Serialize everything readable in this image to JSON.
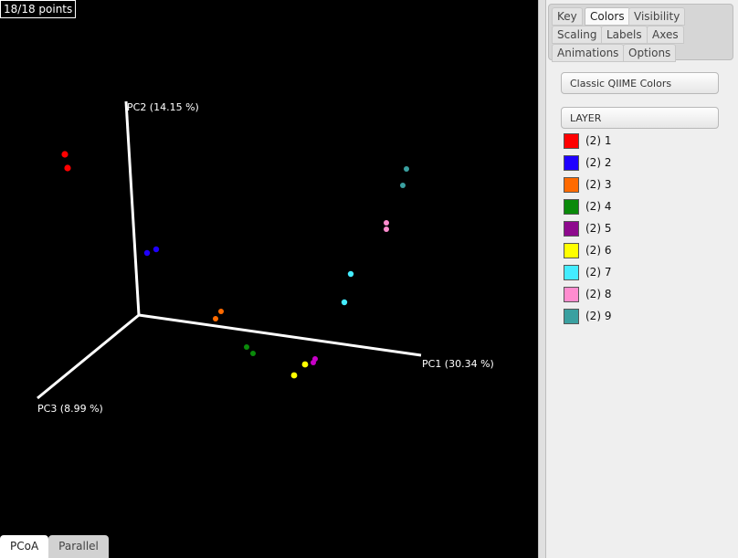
{
  "counter": "18/18 points",
  "axes": {
    "pc1": "PC1 (30.34 %)",
    "pc2": "PC2 (14.15 %)",
    "pc3": "PC3 (8.99 %)"
  },
  "view_tabs": [
    "PCoA",
    "Parallel"
  ],
  "tabs": [
    "Key",
    "Colors",
    "Visibility",
    "Scaling",
    "Labels",
    "Axes",
    "Animations",
    "Options"
  ],
  "active_tab": "Colors",
  "color_scheme": "Classic QIIME Colors",
  "category": "LAYER",
  "legend": [
    {
      "label": "(2) 1",
      "color": "#ff0000"
    },
    {
      "label": "(2) 2",
      "color": "#1f00ff"
    },
    {
      "label": "(2) 3",
      "color": "#ff6a00"
    },
    {
      "label": "(2) 4",
      "color": "#0a8a0a"
    },
    {
      "label": "(2) 5",
      "color": "#8e0a8e"
    },
    {
      "label": "(2) 6",
      "color": "#ffff00"
    },
    {
      "label": "(2) 7",
      "color": "#44ecff"
    },
    {
      "label": "(2) 8",
      "color": "#ff8ccf"
    },
    {
      "label": "(2) 9",
      "color": "#3aa0a0"
    }
  ]
}
